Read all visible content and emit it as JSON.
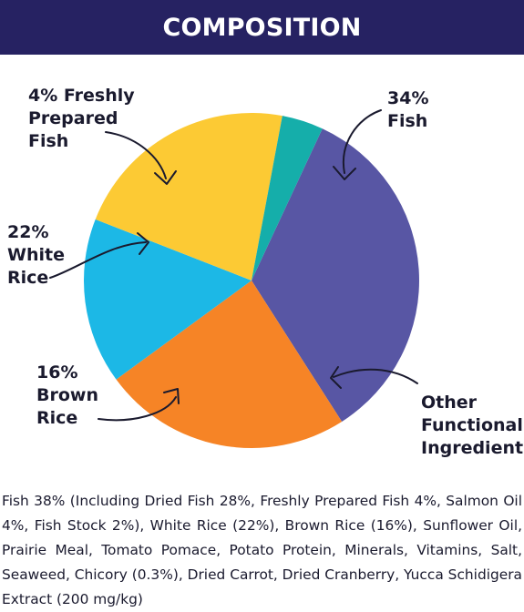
{
  "header": {
    "title": "COMPOSITION"
  },
  "chart_data": {
    "type": "pie",
    "title": "COMPOSITION",
    "slices": [
      {
        "label": "34% Fish",
        "value": 34,
        "color": "#5856a4"
      },
      {
        "label": "Other Functional Ingredients",
        "value": 24,
        "color": "#f68426"
      },
      {
        "label": "16% Brown Rice",
        "value": 16,
        "color": "#1cb8e6"
      },
      {
        "label": "22% White Rice",
        "value": 22,
        "color": "#fcca34"
      },
      {
        "label": "4% Freshly Prepared Fish",
        "value": 4,
        "color": "#15aeaa"
      }
    ]
  },
  "labels": {
    "fish": [
      "34%",
      "Fish"
    ],
    "other": [
      "Other",
      "Functional",
      "Ingredients"
    ],
    "brown_rice": [
      "16%",
      "Brown",
      "Rice"
    ],
    "white_rice": [
      "22%",
      "White",
      "Rice"
    ],
    "fresh_fish": [
      "4% Freshly",
      "Prepared",
      "Fish"
    ]
  },
  "description": "Fish 38% (Including Dried Fish 28%, Freshly Prepared Fish 4%, Salmon Oil 4%, Fish Stock 2%), White Rice (22%), Brown Rice (16%), Sunflower Oil, Prairie Meal, Tomato Pomace, Potato Protein, Minerals, Vitamins, Salt, Seaweed, Chicory (0.3%), Dried Carrot, Dried Cranberry, Yucca Schidigera Extract (200 mg/kg)"
}
